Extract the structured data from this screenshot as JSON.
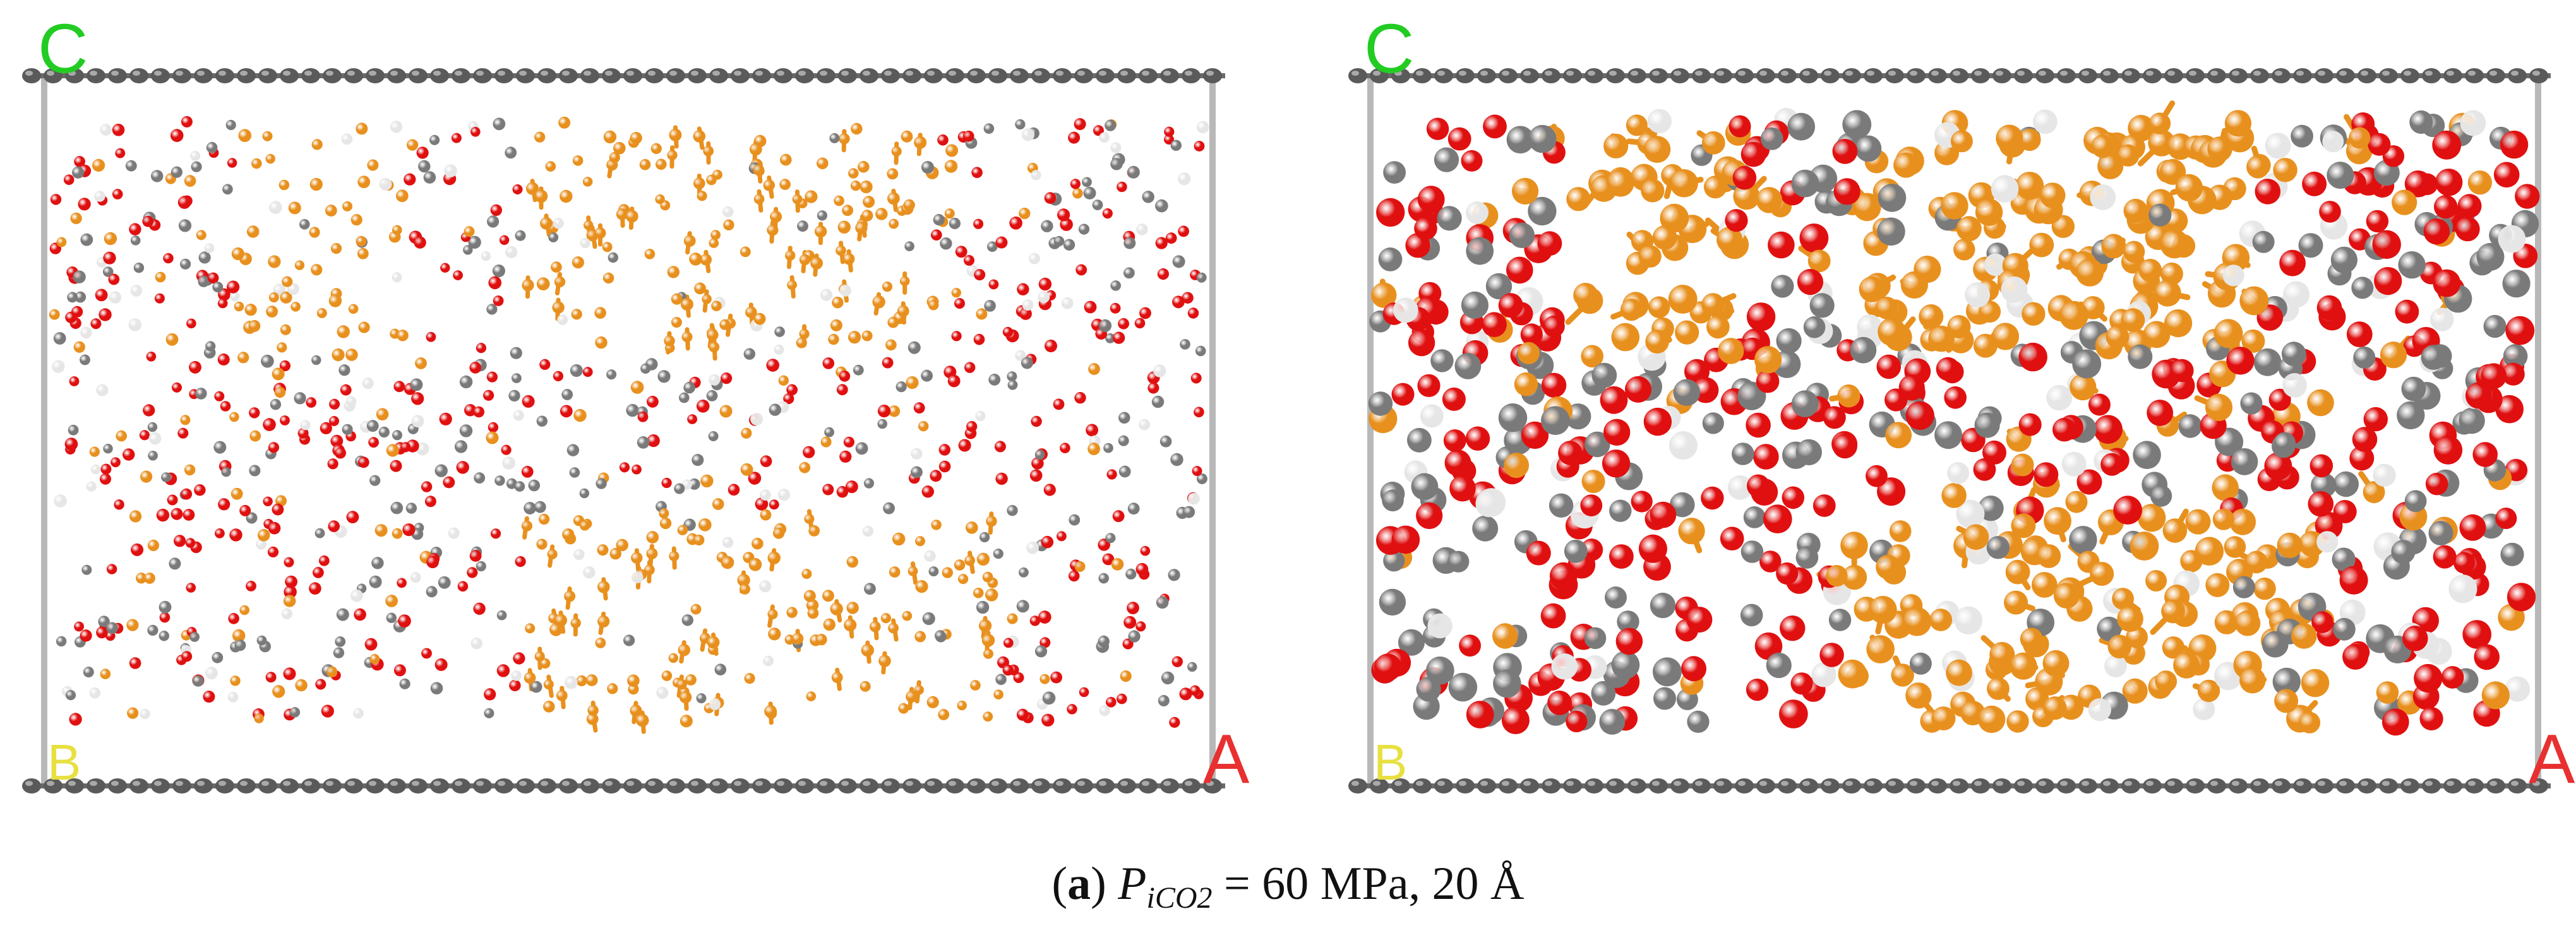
{
  "panels": [
    {
      "id": "left",
      "axis_labels": {
        "top_left": "C",
        "bottom_left": "B",
        "bottom_right": "A"
      },
      "label_colors": {
        "C": "#22cc22",
        "B": "#e8e040",
        "A": "#e83030"
      },
      "view": "wireframe-points"
    },
    {
      "id": "right",
      "axis_labels": {
        "top_left": "C",
        "bottom_left": "B",
        "bottom_right": "A"
      },
      "label_colors": {
        "C": "#22cc22",
        "B": "#e8e040",
        "A": "#e83030"
      },
      "view": "ball-and-stick"
    }
  ],
  "atom_colors": {
    "oxygen": "#e01010",
    "carbon": "#7a7a7a",
    "hydrogen": "#e6e6e6",
    "orange": "#e8901e"
  },
  "caption": {
    "open_paren": "(",
    "letter": "a",
    "close_paren": ") ",
    "var": "P",
    "sub": "iCO2",
    "rest": " = 60 MPa, 20 Å"
  }
}
